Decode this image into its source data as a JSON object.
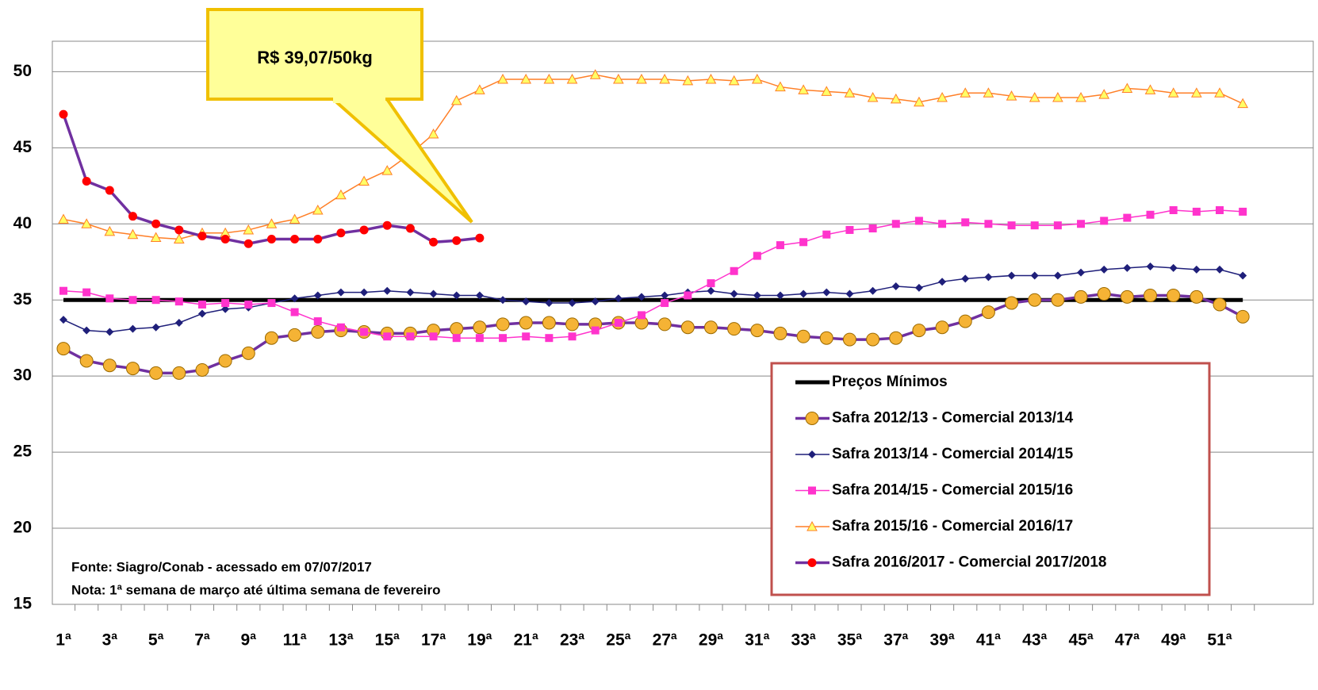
{
  "chart_data": {
    "type": "line",
    "categories": [
      "1ª",
      null,
      "3ª",
      null,
      "5ª",
      null,
      "7ª",
      null,
      "9ª",
      null,
      "11ª",
      null,
      "13ª",
      null,
      "15ª",
      null,
      "17ª",
      null,
      "19ª",
      null,
      "21ª",
      null,
      "23ª",
      null,
      "25ª",
      null,
      "27ª",
      null,
      "29ª",
      null,
      "31ª",
      null,
      "33ª",
      null,
      "35ª",
      null,
      "37ª",
      null,
      "39ª",
      null,
      "41ª",
      null,
      "43ª",
      null,
      "45ª",
      null,
      "47ª",
      null,
      "49ª",
      null,
      "51ª",
      null
    ],
    "ylim": [
      15,
      52
    ],
    "yticks": [
      15,
      20,
      25,
      30,
      35,
      40,
      45,
      50
    ],
    "grid": true,
    "annotation": "R$ 39,07/50kg",
    "notes": [
      "Fonte: Siagro/Conab - acessado em 07/07/2017",
      "Nota: 1ª semana de março até última semana de fevereiro"
    ],
    "series": [
      {
        "name": "Preços Mínimos",
        "color": "#000000",
        "marker": "none",
        "marker_color": "#000000",
        "values": [
          35,
          35,
          35,
          35,
          35,
          35,
          35,
          35,
          35,
          35,
          35,
          35,
          35,
          35,
          35,
          35,
          35,
          35,
          35,
          35,
          35,
          35,
          35,
          35,
          35,
          35,
          35,
          35,
          35,
          35,
          35,
          35,
          35,
          35,
          35,
          35,
          35,
          35,
          35,
          35,
          35,
          35,
          35,
          35,
          35,
          35,
          35,
          35,
          35,
          35,
          35,
          35
        ]
      },
      {
        "name": "Safra 2012/13 - Comercial 2013/14",
        "color": "#7030a0",
        "marker": "circle-big",
        "marker_color": "#f5b335",
        "values": [
          31.8,
          31.0,
          30.7,
          30.5,
          30.2,
          30.2,
          30.4,
          31.0,
          31.5,
          32.5,
          32.7,
          32.9,
          33.0,
          32.9,
          32.8,
          32.8,
          33.0,
          33.1,
          33.2,
          33.4,
          33.5,
          33.5,
          33.4,
          33.4,
          33.5,
          33.5,
          33.4,
          33.2,
          33.2,
          33.1,
          33.0,
          32.8,
          32.6,
          32.5,
          32.4,
          32.4,
          32.5,
          33.0,
          33.2,
          33.6,
          34.2,
          34.8,
          35.0,
          35.0,
          35.2,
          35.4,
          35.2,
          35.3,
          35.3,
          35.2,
          34.7,
          33.9
        ]
      },
      {
        "name": "Safra 2013/14 - Comercial 2014/15",
        "color": "#1f1f7a",
        "marker": "diamond",
        "marker_color": "#1f1f7a",
        "values": [
          33.7,
          33.0,
          32.9,
          33.1,
          33.2,
          33.5,
          34.1,
          34.4,
          34.5,
          34.8,
          35.1,
          35.3,
          35.5,
          35.5,
          35.6,
          35.5,
          35.4,
          35.3,
          35.3,
          35.0,
          34.9,
          34.8,
          34.8,
          34.9,
          35.1,
          35.2,
          35.3,
          35.5,
          35.6,
          35.4,
          35.3,
          35.3,
          35.4,
          35.5,
          35.4,
          35.6,
          35.9,
          35.8,
          36.2,
          36.4,
          36.5,
          36.6,
          36.6,
          36.6,
          36.8,
          37.0,
          37.1,
          37.2,
          37.1,
          37.0,
          37.0,
          36.6
        ]
      },
      {
        "name": "Safra 2014/15 - Comercial 2015/16",
        "color": "#ff33cc",
        "marker": "square",
        "marker_color": "#ff33cc",
        "values": [
          35.6,
          35.5,
          35.1,
          35.0,
          35.0,
          34.9,
          34.7,
          34.8,
          34.7,
          34.8,
          34.2,
          33.6,
          33.2,
          32.9,
          32.6,
          32.6,
          32.6,
          32.5,
          32.5,
          32.5,
          32.6,
          32.5,
          32.6,
          33.0,
          33.5,
          34.0,
          34.8,
          35.3,
          36.1,
          36.9,
          37.9,
          38.6,
          38.8,
          39.3,
          39.6,
          39.7,
          40.0,
          40.2,
          40.0,
          40.1,
          40.0,
          39.9,
          39.9,
          39.9,
          40.0,
          40.2,
          40.4,
          40.6,
          40.9,
          40.8,
          40.9,
          40.8
        ]
      },
      {
        "name": "Safra 2015/16 - Comercial 2016/17",
        "color": "#ff7f27",
        "marker": "triangle",
        "marker_color": "#ffff66",
        "values": [
          40.3,
          40.0,
          39.5,
          39.3,
          39.1,
          39.0,
          39.4,
          39.4,
          39.6,
          40.0,
          40.3,
          40.9,
          41.9,
          42.8,
          43.5,
          44.6,
          45.9,
          48.1,
          48.8,
          49.5,
          49.5,
          49.5,
          49.5,
          49.8,
          49.5,
          49.5,
          49.5,
          49.4,
          49.5,
          49.4,
          49.5,
          49.0,
          48.8,
          48.7,
          48.6,
          48.3,
          48.2,
          48.0,
          48.3,
          48.6,
          48.6,
          48.4,
          48.3,
          48.3,
          48.3,
          48.5,
          48.9,
          48.8,
          48.6,
          48.6,
          48.6,
          47.9
        ]
      },
      {
        "name": "Safra 2016/2017 - Comercial 2017/2018",
        "color": "#7030a0",
        "marker": "circle",
        "marker_color": "#ff0000",
        "values": [
          47.2,
          42.8,
          42.2,
          40.5,
          40.0,
          39.6,
          39.2,
          39.0,
          38.7,
          39.0,
          39.0,
          39.0,
          39.4,
          39.6,
          39.9,
          39.7,
          38.8,
          38.9,
          39.07,
          null,
          null,
          null,
          null,
          null,
          null,
          null,
          null,
          null,
          null,
          null,
          null,
          null,
          null,
          null,
          null,
          null,
          null,
          null,
          null,
          null,
          null,
          null,
          null,
          null,
          null,
          null,
          null,
          null,
          null,
          null,
          null,
          null
        ]
      }
    ]
  }
}
